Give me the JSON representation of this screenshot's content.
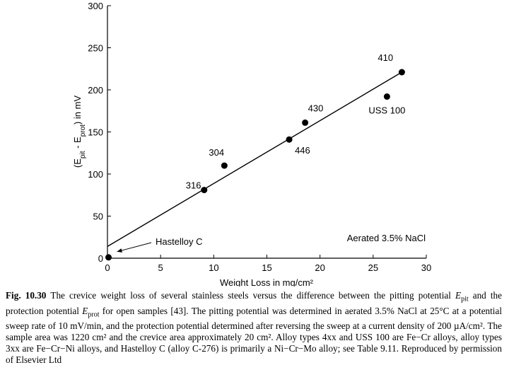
{
  "chart_data": {
    "type": "scatter",
    "x_label": "Weight Loss in mg/cm²",
    "y_label": [
      "(E",
      "pit",
      " - E",
      "prot",
      ") in mV"
    ],
    "annotation": "Aerated 3.5% NaCl",
    "xlim": [
      0,
      30
    ],
    "xticks": [
      0,
      5,
      10,
      15,
      20,
      25,
      30
    ],
    "ylim": [
      0,
      300
    ],
    "yticks": [
      0,
      50,
      100,
      150,
      200,
      250,
      300
    ],
    "series": [
      {
        "color": "#000000",
        "x": [
          0.1,
          9.1,
          11,
          17.1,
          18.6,
          26.3,
          27.7
        ],
        "values": [
          1,
          81,
          110,
          141,
          161,
          192,
          221
        ],
        "labels": [
          "Hastelloy C",
          "316",
          "304",
          "446",
          "430",
          "USS 100",
          "410"
        ]
      }
    ],
    "fit_line": {
      "color": "#000000",
      "x": [
        0,
        27.7
      ],
      "values": [
        14,
        221
      ]
    }
  },
  "caption": {
    "label": "Fig. 10.30",
    "segments": [
      [
        "The crevice weight loss of several stainless steels versus the difference between the pitting potential ",
        ""
      ],
      [
        "E",
        "i"
      ],
      [
        "pit",
        "sub"
      ],
      [
        " and the protection potential ",
        ""
      ],
      [
        "E",
        "i"
      ],
      [
        "prot",
        "sub"
      ],
      [
        " for open samples [43]. The pitting potential was determined in aerated 3.5% NaCl at 25°C at a potential sweep rate of 10 mV/min, and the protection potential determined after reversing the sweep at a current density of 200 µA/cm². The sample area was 1220 cm² and the crevice area approximately 20 cm². Alloy types 4xx and USS 100 are Fe−Cr alloys, alloy types 3xx are Fe−Cr−Ni alloys, and Hastelloy C (alloy C-276) is primarily a Ni−Cr−Mo alloy; see Table 9.11. Reproduced by permission of Elsevier Ltd",
        ""
      ]
    ]
  }
}
